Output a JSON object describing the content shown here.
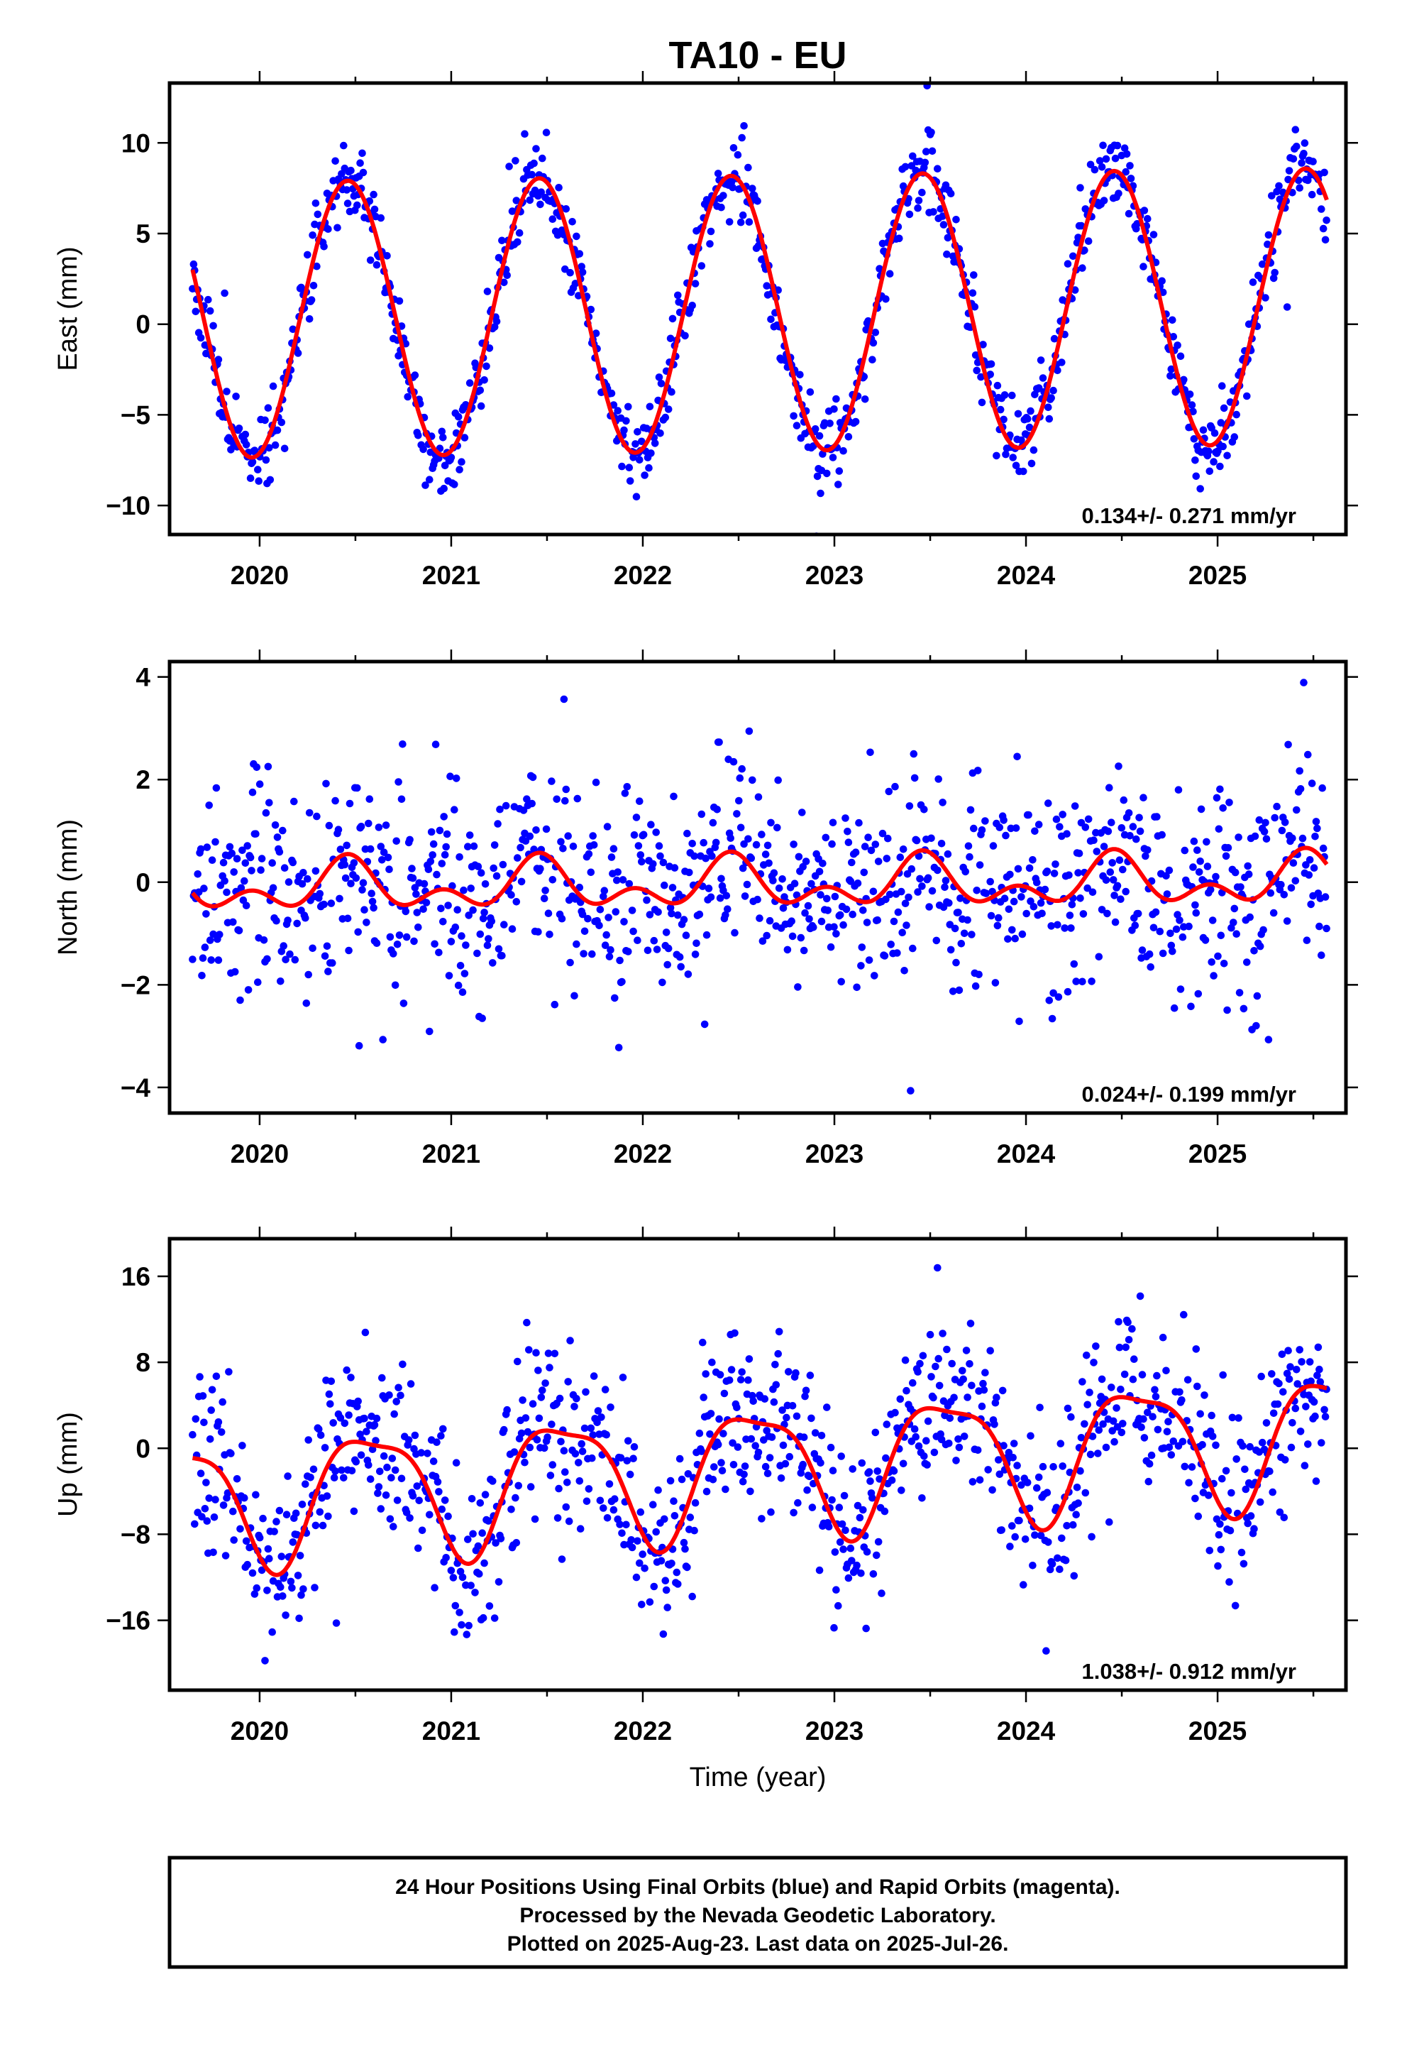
{
  "title": "TA10 - EU",
  "colors": {
    "points": "#0000ff",
    "fit": "#ff0000",
    "frame": "#000000",
    "background": "#ffffff"
  },
  "chart_data": [
    {
      "type": "scatter",
      "name": "east",
      "ylabel": "East (mm)",
      "xlabel": "",
      "rate_label": "0.134+/- 0.271 mm/yr",
      "xlim": [
        2019.53,
        2025.67
      ],
      "ylim": [
        -11.6,
        13.3
      ],
      "xticks": [
        2020,
        2021,
        2022,
        2023,
        2024,
        2025
      ],
      "xtick_labels": [
        "2020",
        "2021",
        "2022",
        "2023",
        "2024",
        "2025"
      ],
      "yticks": [
        -10,
        -5,
        0,
        5,
        10
      ],
      "ytick_labels": [
        "−10",
        "−5",
        "0",
        "5",
        "10"
      ],
      "grid": false,
      "series": [
        {
          "role": "observations",
          "style": "points",
          "color": "#0000ff",
          "model": {
            "start": 2019.65,
            "end": 2025.57,
            "step": 0.0054,
            "offset": 0.6,
            "rate": 0.134,
            "annual_amplitude": 7.6,
            "annual_peak": 2020.46,
            "scatter_sd": 1.1,
            "seed": 11
          }
        },
        {
          "role": "fit",
          "style": "line",
          "color": "#ff0000",
          "model": {
            "start": 2019.65,
            "end": 2025.57,
            "offset": 0.6,
            "rate": 0.134,
            "annual_amplitude": 7.6,
            "annual_peak": 2020.46
          }
        }
      ]
    },
    {
      "type": "scatter",
      "name": "north",
      "ylabel": "North (mm)",
      "xlabel": "",
      "rate_label": "0.024+/- 0.199 mm/yr",
      "xlim": [
        2019.53,
        2025.67
      ],
      "ylim": [
        -4.5,
        4.3
      ],
      "xticks": [
        2020,
        2021,
        2022,
        2023,
        2024,
        2025
      ],
      "xtick_labels": [
        "2020",
        "2021",
        "2022",
        "2023",
        "2024",
        "2025"
      ],
      "yticks": [
        -4,
        -2,
        0,
        2,
        4
      ],
      "ytick_labels": [
        "−4",
        "−2",
        "0",
        "2",
        "4"
      ],
      "grid": false,
      "series": [
        {
          "role": "observations",
          "style": "points",
          "color": "#0000ff",
          "model": {
            "start": 2019.65,
            "end": 2025.57,
            "step": 0.0054,
            "offset": -0.05,
            "rate": 0.024,
            "annual_amplitude": 0.35,
            "annual_peak": 2020.46,
            "semiannual_amplitude": 0.3,
            "semiannual_peak": 2020.46,
            "scatter_sd": 1.0,
            "seed": 23
          }
        },
        {
          "role": "fit",
          "style": "line",
          "color": "#ff0000",
          "model": {
            "start": 2019.65,
            "end": 2025.57,
            "offset": -0.05,
            "rate": 0.024,
            "annual_amplitude": 0.35,
            "annual_peak": 2020.46,
            "semiannual_amplitude": 0.3,
            "semiannual_peak": 2020.46
          }
        }
      ]
    },
    {
      "type": "scatter",
      "name": "up",
      "ylabel": "Up (mm)",
      "xlabel": "Time (year)",
      "rate_label": "1.038+/- 0.912 mm/yr",
      "xlim": [
        2019.53,
        2025.67
      ],
      "ylim": [
        -22.5,
        19.5
      ],
      "xticks": [
        2020,
        2021,
        2022,
        2023,
        2024,
        2025
      ],
      "xtick_labels": [
        "2020",
        "2021",
        "2022",
        "2023",
        "2024",
        "2025"
      ],
      "yticks": [
        -16,
        -8,
        0,
        8,
        16
      ],
      "ytick_labels": [
        "−16",
        "−8",
        "0",
        "8",
        "16"
      ],
      "grid": false,
      "series": [
        {
          "role": "observations",
          "style": "points",
          "color": "#0000ff",
          "model": {
            "start": 2019.65,
            "end": 2025.57,
            "step": 0.0054,
            "offset": -1.8,
            "rate": 1.038,
            "annual_amplitude": 5.8,
            "annual_peak": 2020.58,
            "semiannual_amplitude": 1.6,
            "semiannual_peak": 2020.35,
            "scatter_sd": 4.0,
            "seed": 37
          }
        },
        {
          "role": "fit",
          "style": "line",
          "color": "#ff0000",
          "model": {
            "start": 2019.65,
            "end": 2025.57,
            "offset": -1.8,
            "rate": 1.038,
            "annual_amplitude": 5.8,
            "annual_peak": 2020.58,
            "semiannual_amplitude": 1.6,
            "semiannual_peak": 2020.35
          }
        }
      ]
    }
  ],
  "footer": {
    "line1": "24 Hour Positions Using Final Orbits (blue) and Rapid Orbits (magenta).",
    "line2": "Processed by the Nevada Geodetic Laboratory.",
    "line3": "Plotted on 2025-Aug-23. Last data on 2025-Jul-26."
  }
}
